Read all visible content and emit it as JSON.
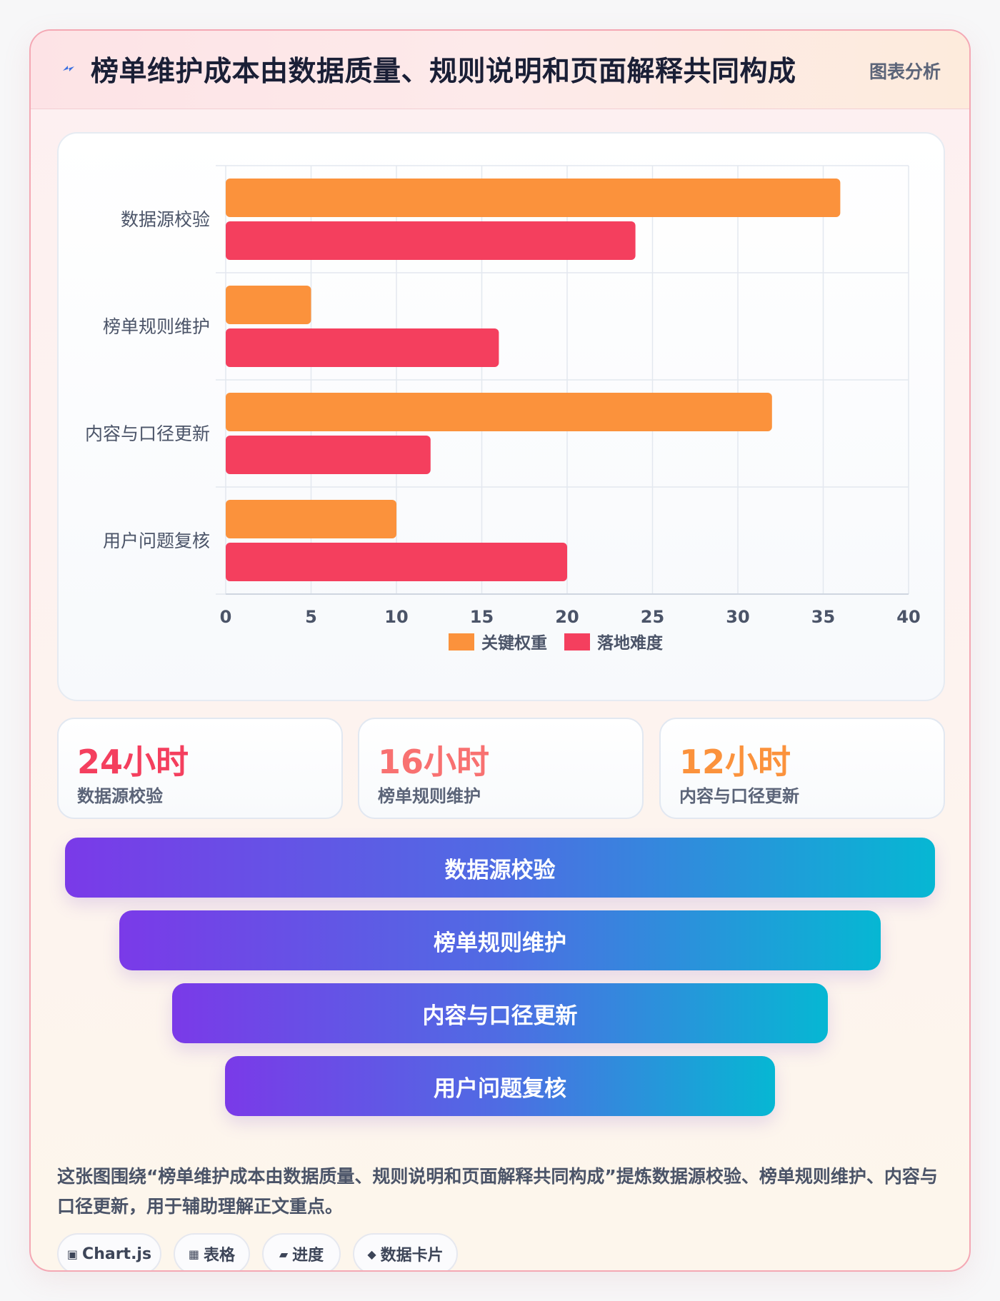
{
  "header": {
    "title": "榜单维护成本由数据质量、规则说明和页面解释共同构成",
    "tag": "图表分析",
    "icon": "lightning-bolt-icon"
  },
  "chart_data": {
    "type": "bar",
    "orientation": "horizontal",
    "categories": [
      "数据源校验",
      "榜单规则维护",
      "内容与口径更新",
      "用户问题复核"
    ],
    "series": [
      {
        "name": "关键权重",
        "values": [
          36,
          5,
          32,
          10
        ],
        "color": "#fb923c"
      },
      {
        "name": "落地难度",
        "values": [
          24,
          16,
          12,
          20
        ],
        "color": "#f43f5e"
      }
    ],
    "xlim": [
      0,
      40
    ],
    "xticks": [
      0,
      5,
      10,
      15,
      20,
      25,
      30,
      35,
      40
    ],
    "grid": true,
    "legend": "bottom"
  },
  "stats": [
    {
      "value": "24小时",
      "label": "数据源校验",
      "color": "#f43f5e"
    },
    {
      "value": "16小时",
      "label": "榜单规则维护",
      "color": "#f87171"
    },
    {
      "value": "12小时",
      "label": "内容与口径更新",
      "color": "#fb923c"
    }
  ],
  "funnel": [
    "数据源校验",
    "榜单规则维护",
    "内容与口径更新",
    "用户问题复核"
  ],
  "description": "这张图围绕“榜单维护成本由数据质量、规则说明和页面解释共同构成”提炼数据源校验、榜单规则维护、内容与口径更新，用于辅助理解正文重点。",
  "chips": [
    {
      "icon": "▣",
      "icon_name": "chart-icon",
      "label": "Chart.js"
    },
    {
      "icon": "▦",
      "icon_name": "table-icon",
      "label": "表格"
    },
    {
      "icon": "▰",
      "icon_name": "progress-icon",
      "label": "进度"
    },
    {
      "icon": "◆",
      "icon_name": "data-card-icon",
      "label": "数据卡片"
    }
  ]
}
